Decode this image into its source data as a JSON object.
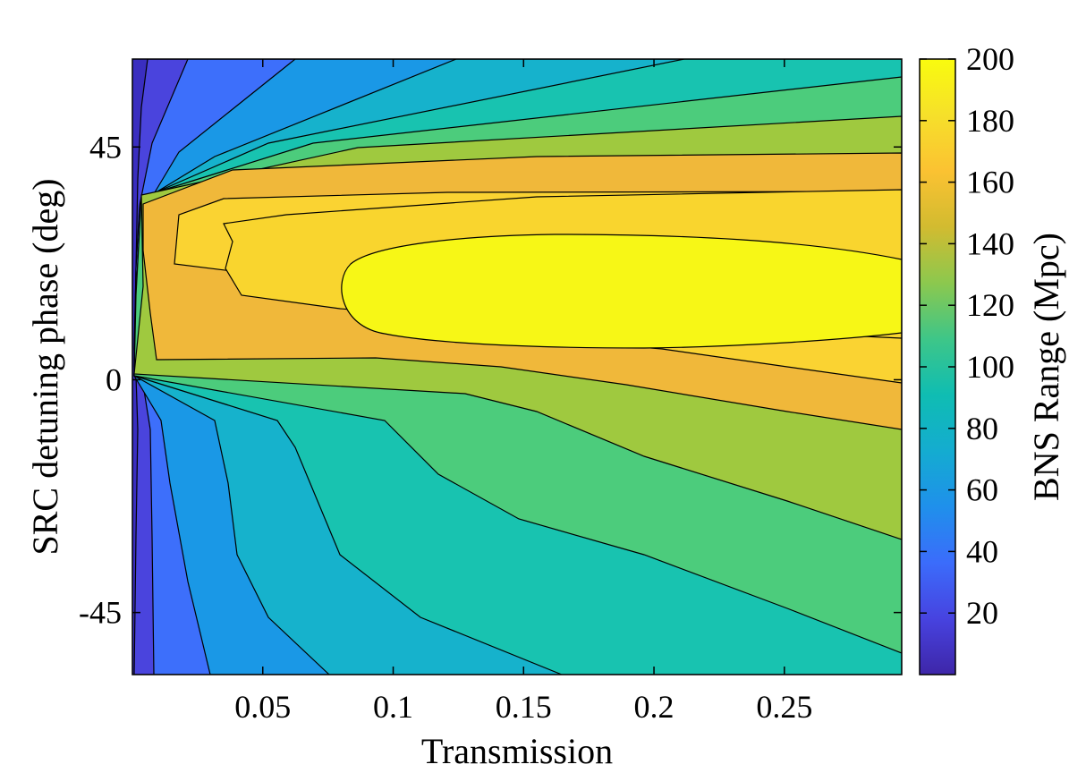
{
  "chart_data": {
    "type": "contour",
    "xlabel": "Transmission",
    "ylabel": "SRC detuning phase (deg)",
    "colorbar_label": "BNS Range (Mpc)",
    "xlim": [
      0.0,
      0.295
    ],
    "ylim": [
      -57,
      62
    ],
    "xticks": [
      0.05,
      0.1,
      0.15,
      0.2,
      0.25
    ],
    "xtick_labels": [
      "0.05",
      "0.1",
      "0.15",
      "0.2",
      "0.25"
    ],
    "yticks": [
      45,
      0,
      -45
    ],
    "ytick_labels": [
      "45",
      "0",
      "-45"
    ],
    "clim": [
      0,
      200
    ],
    "cticks": [
      20,
      40,
      60,
      80,
      100,
      120,
      140,
      160,
      180,
      200
    ],
    "ctick_labels": [
      "20",
      "40",
      "60",
      "80",
      "100",
      "120",
      "140",
      "160",
      "180",
      "200"
    ],
    "contour_levels": [
      20,
      40,
      60,
      80,
      100,
      120,
      140,
      160,
      180
    ],
    "colormap": "parula",
    "max_region": {
      "value_above": 180,
      "transmission_range": [
        0.08,
        0.295
      ],
      "phase_range": [
        9,
        25
      ]
    },
    "grid": false
  }
}
